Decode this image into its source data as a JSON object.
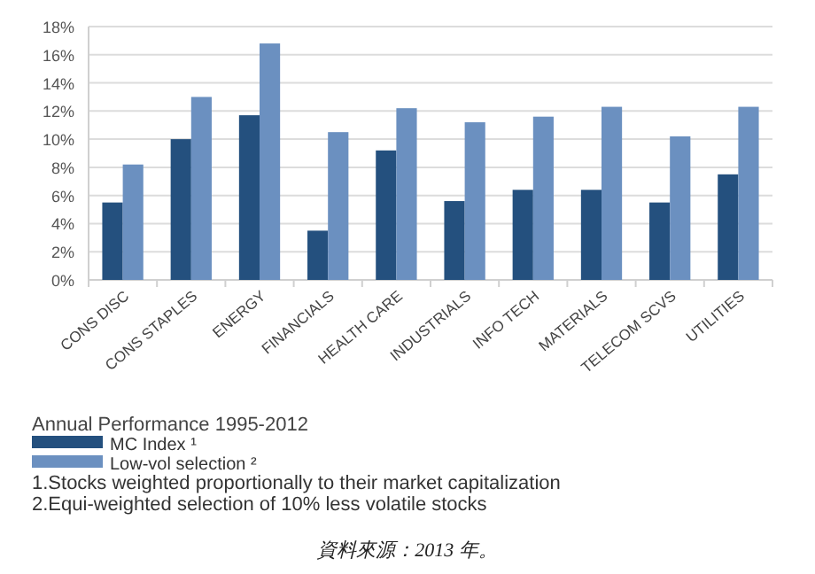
{
  "chart_data": {
    "type": "bar",
    "categories": [
      "CONS DISC",
      "CONS STAPLES",
      "ENERGY",
      "FINANCIALS",
      "HEALTH CARE",
      "INDUSTRIALS",
      "INFO TECH",
      "MATERIALS",
      "TELECOM SCVS",
      "UTILITIES"
    ],
    "series": [
      {
        "name": "MC Index ¹",
        "color": "#24507e",
        "values": [
          5.5,
          10.0,
          11.7,
          3.5,
          9.2,
          5.6,
          6.4,
          6.4,
          5.5,
          7.5
        ]
      },
      {
        "name": "Low-vol selection ²",
        "color": "#6b90c0",
        "values": [
          8.2,
          13.0,
          16.8,
          10.5,
          12.2,
          11.2,
          11.6,
          12.3,
          10.2,
          12.3
        ]
      }
    ],
    "ylim": [
      0,
      18
    ],
    "yticks": [
      {
        "value": 0,
        "label": "0%"
      },
      {
        "value": 2,
        "label": "2%"
      },
      {
        "value": 4,
        "label": "4%"
      },
      {
        "value": 6,
        "label": "6%"
      },
      {
        "value": 8,
        "label": "8%"
      },
      {
        "value": 10,
        "label": "10%"
      },
      {
        "value": 12,
        "label": "12%"
      },
      {
        "value": 14,
        "label": "14%"
      },
      {
        "value": 16,
        "label": "16%"
      },
      {
        "value": 18,
        "label": "18%"
      }
    ],
    "grid": "y",
    "legend": "bottom",
    "legend_title": "Annual Performance 1995-2012",
    "annotations": [
      "1.Stocks weighted proportionally to their market capitalization",
      "2.Equi-weighted selection of 10% less volatile stocks",
      "資料來源：2013 年。"
    ]
  }
}
